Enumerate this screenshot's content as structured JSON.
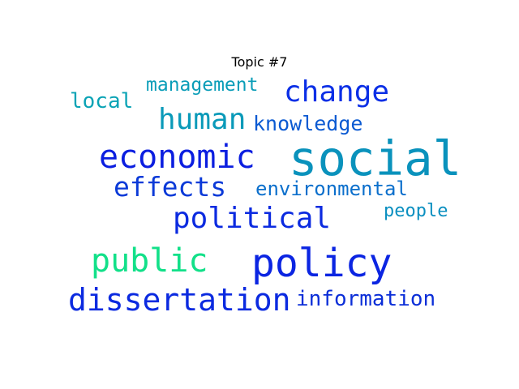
{
  "title": "Topic #7",
  "words": [
    {
      "text": "management",
      "color": "#0a9db8"
    },
    {
      "text": "local",
      "color": "#0aa3b5"
    },
    {
      "text": "change",
      "color": "#0b2fe6"
    },
    {
      "text": "human",
      "color": "#0a9ab9"
    },
    {
      "text": "knowledge",
      "color": "#0b5ad2"
    },
    {
      "text": "economic",
      "color": "#0b1ee0"
    },
    {
      "text": "social",
      "color": "#0a92bc"
    },
    {
      "text": "effects",
      "color": "#0b3ad8"
    },
    {
      "text": "environmental",
      "color": "#0b6fcc"
    },
    {
      "text": "political",
      "color": "#0b2ae0"
    },
    {
      "text": "people",
      "color": "#0a8fc0"
    },
    {
      "text": "public",
      "color": "#12e089"
    },
    {
      "text": "policy",
      "color": "#0b25e2"
    },
    {
      "text": "dissertation",
      "color": "#0b2ae0"
    },
    {
      "text": "information",
      "color": "#0b2ed8"
    }
  ]
}
